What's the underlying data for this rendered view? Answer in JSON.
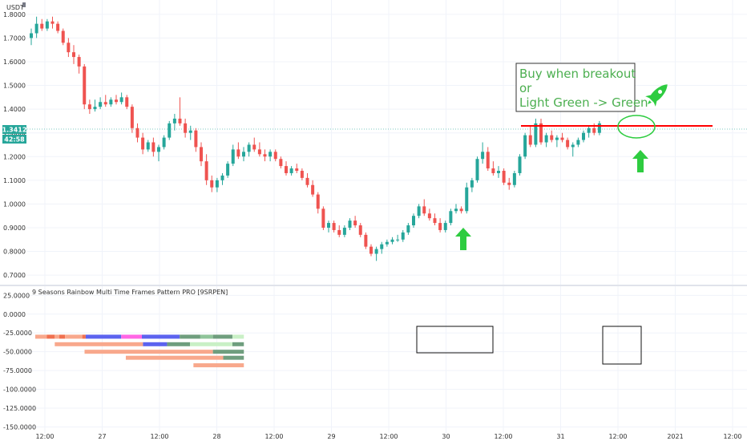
{
  "colors": {
    "up": "#26a69a",
    "down": "#ef5350",
    "price_badge": "#26a69a",
    "annotation": "#4caf50",
    "breakout_line": "#ff0000"
  },
  "header": {
    "currency": "USDT"
  },
  "chart_data": [
    {
      "type": "candlestick",
      "title": "",
      "ylabel": "USDT",
      "y_ticks": [
        "1.8000",
        "1.7000",
        "1.6000",
        "1.5000",
        "1.4000",
        "1.3000",
        "1.2000",
        "1.1000",
        "1.0000",
        "0.9000",
        "0.8000",
        "0.7000"
      ],
      "ylim": [
        0.67,
        1.84
      ],
      "x_ticks": [
        "12:00",
        "27",
        "12:00",
        "28",
        "12:00",
        "29",
        "12:00",
        "30",
        "12:00",
        "31",
        "12:00",
        "2021",
        "12:00"
      ],
      "current_price": "1.3412",
      "countdown": "42:58",
      "grid": true,
      "candles": [
        [
          1.7,
          1.74,
          1.67,
          1.72
        ],
        [
          1.72,
          1.79,
          1.7,
          1.76
        ],
        [
          1.76,
          1.78,
          1.73,
          1.74
        ],
        [
          1.74,
          1.78,
          1.73,
          1.77
        ],
        [
          1.77,
          1.79,
          1.74,
          1.76
        ],
        [
          1.76,
          1.77,
          1.72,
          1.73
        ],
        [
          1.73,
          1.74,
          1.67,
          1.68
        ],
        [
          1.68,
          1.7,
          1.62,
          1.64
        ],
        [
          1.64,
          1.67,
          1.59,
          1.62
        ],
        [
          1.62,
          1.63,
          1.55,
          1.58
        ],
        [
          1.58,
          1.59,
          1.4,
          1.42
        ],
        [
          1.42,
          1.44,
          1.38,
          1.4
        ],
        [
          1.4,
          1.44,
          1.39,
          1.41
        ],
        [
          1.41,
          1.45,
          1.4,
          1.43
        ],
        [
          1.43,
          1.46,
          1.41,
          1.42
        ],
        [
          1.42,
          1.45,
          1.41,
          1.44
        ],
        [
          1.44,
          1.46,
          1.42,
          1.43
        ],
        [
          1.43,
          1.47,
          1.42,
          1.45
        ],
        [
          1.45,
          1.46,
          1.4,
          1.41
        ],
        [
          1.41,
          1.42,
          1.3,
          1.32
        ],
        [
          1.32,
          1.34,
          1.26,
          1.28
        ],
        [
          1.28,
          1.3,
          1.21,
          1.23
        ],
        [
          1.23,
          1.27,
          1.22,
          1.26
        ],
        [
          1.26,
          1.28,
          1.2,
          1.22
        ],
        [
          1.22,
          1.25,
          1.18,
          1.24
        ],
        [
          1.24,
          1.29,
          1.23,
          1.28
        ],
        [
          1.28,
          1.35,
          1.27,
          1.34
        ],
        [
          1.34,
          1.38,
          1.31,
          1.36
        ],
        [
          1.36,
          1.45,
          1.33,
          1.34
        ],
        [
          1.34,
          1.36,
          1.28,
          1.3
        ],
        [
          1.3,
          1.33,
          1.27,
          1.31
        ],
        [
          1.31,
          1.32,
          1.22,
          1.24
        ],
        [
          1.24,
          1.26,
          1.16,
          1.18
        ],
        [
          1.18,
          1.21,
          1.08,
          1.1
        ],
        [
          1.1,
          1.12,
          1.05,
          1.07
        ],
        [
          1.07,
          1.11,
          1.05,
          1.1
        ],
        [
          1.1,
          1.13,
          1.08,
          1.12
        ],
        [
          1.12,
          1.18,
          1.11,
          1.17
        ],
        [
          1.17,
          1.25,
          1.16,
          1.23
        ],
        [
          1.23,
          1.26,
          1.19,
          1.2
        ],
        [
          1.2,
          1.24,
          1.18,
          1.22
        ],
        [
          1.22,
          1.26,
          1.2,
          1.25
        ],
        [
          1.25,
          1.28,
          1.22,
          1.23
        ],
        [
          1.23,
          1.26,
          1.2,
          1.21
        ],
        [
          1.21,
          1.23,
          1.18,
          1.2
        ],
        [
          1.2,
          1.23,
          1.18,
          1.22
        ],
        [
          1.22,
          1.23,
          1.18,
          1.19
        ],
        [
          1.19,
          1.2,
          1.15,
          1.16
        ],
        [
          1.16,
          1.18,
          1.12,
          1.13
        ],
        [
          1.13,
          1.16,
          1.12,
          1.15
        ],
        [
          1.15,
          1.17,
          1.13,
          1.14
        ],
        [
          1.14,
          1.15,
          1.1,
          1.11
        ],
        [
          1.11,
          1.13,
          1.07,
          1.08
        ],
        [
          1.08,
          1.1,
          1.03,
          1.04
        ],
        [
          1.04,
          1.05,
          0.96,
          0.98
        ],
        [
          0.98,
          0.99,
          0.89,
          0.9
        ],
        [
          0.9,
          0.93,
          0.88,
          0.92
        ],
        [
          0.92,
          0.93,
          0.88,
          0.89
        ],
        [
          0.89,
          0.91,
          0.86,
          0.87
        ],
        [
          0.87,
          0.91,
          0.86,
          0.9
        ],
        [
          0.9,
          0.94,
          0.89,
          0.93
        ],
        [
          0.93,
          0.95,
          0.9,
          0.91
        ],
        [
          0.91,
          0.92,
          0.86,
          0.87
        ],
        [
          0.87,
          0.88,
          0.81,
          0.82
        ],
        [
          0.82,
          0.83,
          0.78,
          0.79
        ],
        [
          0.79,
          0.82,
          0.76,
          0.81
        ],
        [
          0.81,
          0.84,
          0.79,
          0.83
        ],
        [
          0.83,
          0.85,
          0.82,
          0.84
        ],
        [
          0.84,
          0.86,
          0.83,
          0.85
        ],
        [
          0.85,
          0.87,
          0.84,
          0.85
        ],
        [
          0.85,
          0.89,
          0.84,
          0.88
        ],
        [
          0.88,
          0.92,
          0.87,
          0.91
        ],
        [
          0.91,
          0.96,
          0.9,
          0.95
        ],
        [
          0.95,
          1.0,
          0.94,
          0.99
        ],
        [
          0.99,
          1.02,
          0.95,
          0.96
        ],
        [
          0.96,
          0.98,
          0.93,
          0.94
        ],
        [
          0.94,
          0.96,
          0.91,
          0.92
        ],
        [
          0.92,
          0.94,
          0.88,
          0.89
        ],
        [
          0.89,
          0.93,
          0.88,
          0.92
        ],
        [
          0.92,
          0.98,
          0.91,
          0.97
        ],
        [
          0.97,
          1.0,
          0.96,
          0.98
        ],
        [
          0.98,
          0.99,
          0.96,
          0.97
        ],
        [
          0.97,
          1.09,
          0.96,
          1.07
        ],
        [
          1.07,
          1.11,
          1.05,
          1.1
        ],
        [
          1.1,
          1.2,
          1.09,
          1.19
        ],
        [
          1.19,
          1.26,
          1.17,
          1.22
        ],
        [
          1.22,
          1.24,
          1.14,
          1.15
        ],
        [
          1.15,
          1.18,
          1.12,
          1.13
        ],
        [
          1.13,
          1.16,
          1.11,
          1.14
        ],
        [
          1.14,
          1.15,
          1.08,
          1.09
        ],
        [
          1.09,
          1.11,
          1.06,
          1.08
        ],
        [
          1.08,
          1.14,
          1.07,
          1.13
        ],
        [
          1.13,
          1.21,
          1.12,
          1.2
        ],
        [
          1.2,
          1.3,
          1.19,
          1.29
        ],
        [
          1.29,
          1.33,
          1.24,
          1.25
        ],
        [
          1.25,
          1.36,
          1.24,
          1.34
        ],
        [
          1.34,
          1.36,
          1.25,
          1.26
        ],
        [
          1.26,
          1.3,
          1.24,
          1.29
        ],
        [
          1.29,
          1.31,
          1.26,
          1.27
        ],
        [
          1.27,
          1.29,
          1.24,
          1.28
        ],
        [
          1.28,
          1.3,
          1.26,
          1.27
        ],
        [
          1.27,
          1.28,
          1.23,
          1.24
        ],
        [
          1.24,
          1.26,
          1.2,
          1.25
        ],
        [
          1.25,
          1.28,
          1.24,
          1.27
        ],
        [
          1.27,
          1.31,
          1.26,
          1.3
        ],
        [
          1.3,
          1.33,
          1.28,
          1.32
        ],
        [
          1.32,
          1.34,
          1.29,
          1.3
        ],
        [
          1.3,
          1.35,
          1.29,
          1.34
        ]
      ],
      "annotations": [
        "Buy when breakout",
        "or",
        "Light Green -> Green"
      ]
    },
    {
      "type": "bar",
      "title": "9 Seasons Rainbow Multi Time Frames Pattern PRO [9SRPEN]",
      "y_ticks": [
        "25.0000",
        "0.0000",
        "-25.0000",
        "-50.0000",
        "-75.0000",
        "-100.0000",
        "-125.0000",
        "-150.0000"
      ],
      "ylim": [
        -158,
        36
      ],
      "grid": true,
      "rows": [
        {
          "value": -30,
          "segments": [
            {
              "from": 0,
              "to": 0.1,
              "color": "#f8a88c"
            },
            {
              "from": 0.1,
              "to": 0.17,
              "color": "#f0704f"
            },
            {
              "from": 0.17,
              "to": 0.21,
              "color": "#f8a88c"
            },
            {
              "from": 0.21,
              "to": 0.26,
              "color": "#f0704f"
            },
            {
              "from": 0.26,
              "to": 0.41,
              "color": "#f8a88c"
            },
            {
              "from": 0.41,
              "to": 0.44,
              "color": "#f0704f"
            },
            {
              "from": 0.44,
              "to": 0.75,
              "color": "#5c63ef"
            },
            {
              "from": 0.75,
              "to": 0.93,
              "color": "#ff66e5"
            },
            {
              "from": 0.93,
              "to": 1.26,
              "color": "#5c63ef"
            },
            {
              "from": 1.26,
              "to": 1.44,
              "color": "#6f9e7e"
            },
            {
              "from": 1.44,
              "to": 1.55,
              "color": "#8fc49a"
            },
            {
              "from": 1.55,
              "to": 1.72,
              "color": "#6f9e7e"
            },
            {
              "from": 1.72,
              "to": 1.82,
              "color": "#c9f0c6"
            }
          ]
        },
        {
          "value": -40,
          "segments": [
            {
              "from": 0.17,
              "to": 0.94,
              "color": "#f8a88c"
            },
            {
              "from": 0.94,
              "to": 1.15,
              "color": "#5c63ef"
            },
            {
              "from": 1.15,
              "to": 1.35,
              "color": "#6f9e7e"
            },
            {
              "from": 1.35,
              "to": 1.72,
              "color": "#c9f0c6"
            },
            {
              "from": 1.72,
              "to": 1.82,
              "color": "#6f9e7e"
            }
          ]
        },
        {
          "value": -50,
          "segments": [
            {
              "from": 0.43,
              "to": 1.55,
              "color": "#f8a88c"
            },
            {
              "from": 1.55,
              "to": 1.82,
              "color": "#6f9e7e"
            }
          ]
        },
        {
          "value": -58,
          "segments": [
            {
              "from": 0.79,
              "to": 1.64,
              "color": "#f8a88c"
            },
            {
              "from": 1.64,
              "to": 1.82,
              "color": "#6f9e7e"
            }
          ]
        },
        {
          "value": -68,
          "segments": [
            {
              "from": 1.38,
              "to": 1.82,
              "color": "#f8a88c"
            }
          ]
        }
      ]
    }
  ]
}
